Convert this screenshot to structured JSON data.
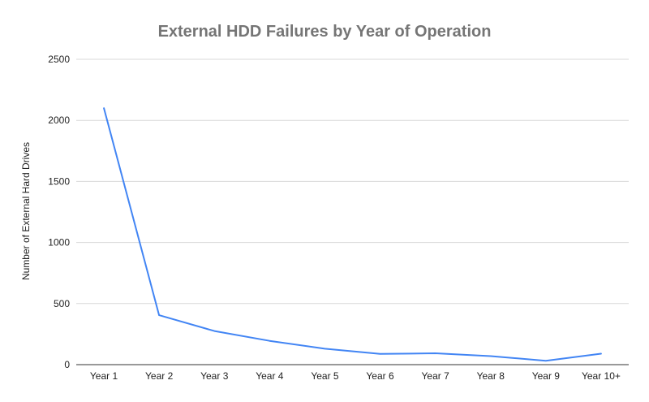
{
  "chart_data": {
    "type": "line",
    "title": "External HDD Failures by Year of Operation",
    "xlabel": "",
    "ylabel": "Number of External Hard Drives",
    "categories": [
      "Year 1",
      "Year 2",
      "Year 3",
      "Year 4",
      "Year 5",
      "Year 6",
      "Year 7",
      "Year 8",
      "Year 9",
      "Year 10+"
    ],
    "series": [
      {
        "values": [
          2100,
          405,
          275,
          195,
          130,
          88,
          93,
          70,
          32,
          90
        ],
        "color": "#4285f4"
      }
    ],
    "ylim": [
      0,
      2500
    ],
    "yticks": [
      "0",
      "500",
      "1000",
      "1500",
      "2000",
      "2500"
    ],
    "grid": true,
    "legend": "none"
  }
}
